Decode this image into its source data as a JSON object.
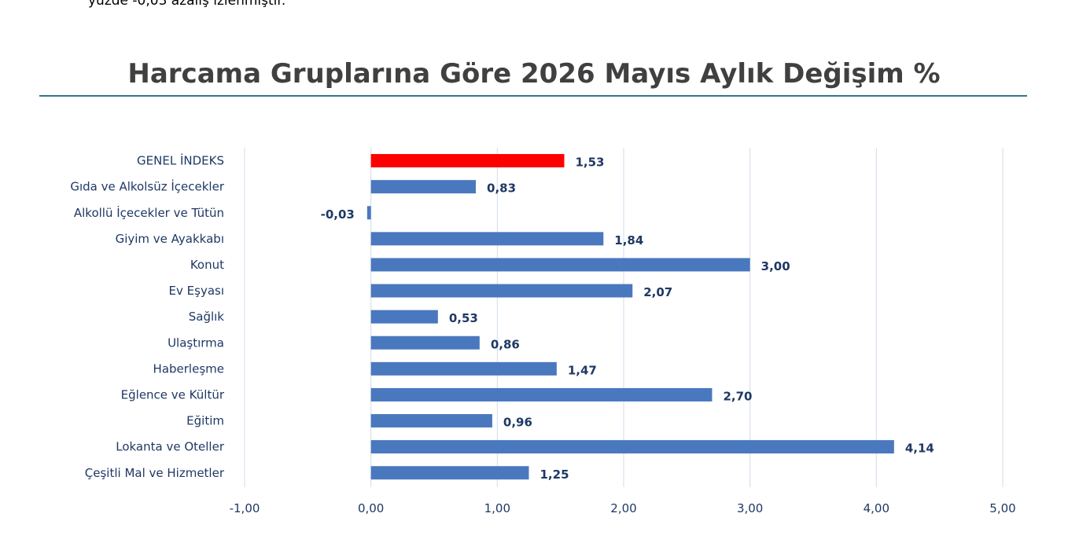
{
  "top_text": "yüzde -0,03 azalış izlenmiştir.",
  "colors": {
    "bar": "#4a78bf",
    "highlight": "#ff0000",
    "grid": "#d0dcea",
    "text": "#1f3864"
  },
  "chart_data": {
    "type": "bar",
    "orientation": "horizontal",
    "title": "Harcama Gruplarına Göre 2026 Mayıs Aylık Değişim %",
    "categories": [
      "GENEL İNDEKS",
      "Gıda ve Alkolsüz İçecekler",
      "Alkollü İçecekler ve Tütün",
      "Giyim ve Ayakkabı",
      "Konut",
      "Ev Eşyası",
      "Sağlık",
      "Ulaştırma",
      "Haberleşme",
      "Eğlence ve Kültür",
      "Eğitim",
      "Lokanta ve Oteller",
      "Çeşitli Mal ve Hizmetler"
    ],
    "values": [
      1.53,
      0.83,
      -0.03,
      1.84,
      3.0,
      2.07,
      0.53,
      0.86,
      1.47,
      2.7,
      0.96,
      4.14,
      1.25
    ],
    "value_labels": [
      "1,53",
      "0,83",
      "-0,03",
      "1,84",
      "3,00",
      "2,07",
      "0,53",
      "0,86",
      "1,47",
      "2,70",
      "0,96",
      "4,14",
      "1,25"
    ],
    "highlight_index": 0,
    "xlim": [
      -1,
      5
    ],
    "x_ticks": [
      -1,
      0,
      1,
      2,
      3,
      4,
      5
    ],
    "x_tick_labels": [
      "-1,00",
      "0,00",
      "1,00",
      "2,00",
      "3,00",
      "4,00",
      "5,00"
    ],
    "grid": true,
    "legend": false
  }
}
